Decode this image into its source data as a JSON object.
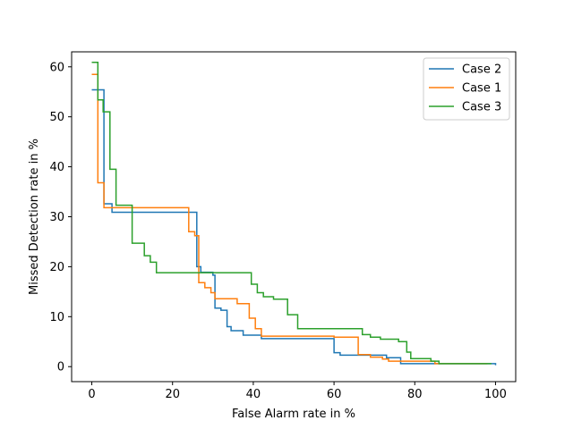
{
  "chart_data": {
    "type": "line",
    "xlabel": "False Alarm rate in %",
    "ylabel": "Missed Detection rate in %",
    "xlim": [
      -5,
      105
    ],
    "ylim": [
      -3,
      63
    ],
    "xticks": [
      0,
      20,
      40,
      60,
      80,
      100
    ],
    "yticks": [
      0,
      10,
      20,
      30,
      40,
      50,
      60
    ],
    "grid": false,
    "legend_position": "top-right",
    "series": [
      {
        "name": "Case 2",
        "color": "#1f77b4",
        "points": [
          [
            0,
            55.4
          ],
          [
            3,
            55.4
          ],
          [
            3,
            32.6
          ],
          [
            5,
            32.6
          ],
          [
            5,
            30.9
          ],
          [
            26,
            30.9
          ],
          [
            26,
            20.0
          ],
          [
            27,
            20.0
          ],
          [
            27,
            18.9
          ],
          [
            30,
            18.9
          ],
          [
            30,
            18.3
          ],
          [
            30.5,
            18.3
          ],
          [
            30.5,
            11.7
          ],
          [
            32,
            11.7
          ],
          [
            32,
            11.3
          ],
          [
            33.5,
            11.3
          ],
          [
            33.5,
            8.0
          ],
          [
            34.5,
            8.0
          ],
          [
            34.5,
            7.2
          ],
          [
            37.5,
            7.2
          ],
          [
            37.5,
            6.3
          ],
          [
            42,
            6.3
          ],
          [
            42,
            5.6
          ],
          [
            60,
            5.6
          ],
          [
            60,
            2.8
          ],
          [
            61.5,
            2.8
          ],
          [
            61.5,
            2.3
          ],
          [
            73,
            2.3
          ],
          [
            73,
            1.8
          ],
          [
            76.5,
            1.8
          ],
          [
            76.5,
            0.6
          ],
          [
            84,
            0.6
          ],
          [
            84,
            0.6
          ],
          [
            100,
            0.6
          ],
          [
            100,
            0.3
          ]
        ]
      },
      {
        "name": "Case 1",
        "color": "#ff7f0e",
        "points": [
          [
            0,
            58.5
          ],
          [
            1.5,
            58.5
          ],
          [
            1.5,
            36.8
          ],
          [
            3,
            36.8
          ],
          [
            3,
            31.8
          ],
          [
            5,
            31.8
          ],
          [
            5,
            31.8
          ],
          [
            24,
            31.8
          ],
          [
            24,
            27.0
          ],
          [
            25.5,
            27.0
          ],
          [
            25.5,
            26.2
          ],
          [
            26.5,
            26.2
          ],
          [
            26.5,
            16.8
          ],
          [
            28,
            16.8
          ],
          [
            28,
            15.8
          ],
          [
            29.5,
            15.8
          ],
          [
            29.5,
            14.8
          ],
          [
            30.5,
            14.8
          ],
          [
            30.5,
            13.6
          ],
          [
            36,
            13.6
          ],
          [
            36,
            12.6
          ],
          [
            39,
            12.6
          ],
          [
            39,
            9.7
          ],
          [
            40.5,
            9.7
          ],
          [
            40.5,
            7.6
          ],
          [
            42,
            7.6
          ],
          [
            42,
            6.1
          ],
          [
            60,
            6.1
          ],
          [
            60,
            5.9
          ],
          [
            66,
            5.9
          ],
          [
            66,
            2.4
          ],
          [
            69,
            2.4
          ],
          [
            69,
            1.9
          ],
          [
            72,
            1.9
          ],
          [
            72,
            1.5
          ],
          [
            73.5,
            1.5
          ],
          [
            73.5,
            1.1
          ],
          [
            81,
            1.1
          ],
          [
            81,
            1.1
          ],
          [
            85,
            1.1
          ],
          [
            85,
            0.6
          ],
          [
            98,
            0.6
          ]
        ]
      },
      {
        "name": "Case 3",
        "color": "#2ca02c",
        "points": [
          [
            0,
            60.9
          ],
          [
            1.5,
            60.9
          ],
          [
            1.5,
            53.4
          ],
          [
            2.8,
            53.4
          ],
          [
            2.8,
            51.0
          ],
          [
            4.5,
            51.0
          ],
          [
            4.5,
            39.5
          ],
          [
            6,
            39.5
          ],
          [
            6,
            32.3
          ],
          [
            10,
            32.3
          ],
          [
            10,
            24.7
          ],
          [
            13,
            24.7
          ],
          [
            13,
            22.2
          ],
          [
            14.5,
            22.2
          ],
          [
            14.5,
            20.9
          ],
          [
            16,
            20.9
          ],
          [
            16,
            18.8
          ],
          [
            39.5,
            18.8
          ],
          [
            39.5,
            16.5
          ],
          [
            41,
            16.5
          ],
          [
            41,
            14.8
          ],
          [
            42.5,
            14.8
          ],
          [
            42.5,
            14.0
          ],
          [
            45,
            14.0
          ],
          [
            45,
            13.5
          ],
          [
            48.5,
            13.5
          ],
          [
            48.5,
            10.4
          ],
          [
            51,
            10.4
          ],
          [
            51,
            7.6
          ],
          [
            67,
            7.6
          ],
          [
            67,
            6.4
          ],
          [
            69,
            6.4
          ],
          [
            69,
            5.9
          ],
          [
            71.5,
            5.9
          ],
          [
            71.5,
            5.5
          ],
          [
            76,
            5.5
          ],
          [
            76,
            5.0
          ],
          [
            78,
            5.0
          ],
          [
            78,
            2.9
          ],
          [
            79,
            2.9
          ],
          [
            79,
            1.6
          ],
          [
            84,
            1.6
          ],
          [
            84,
            1.1
          ],
          [
            86,
            1.1
          ],
          [
            86,
            0.6
          ],
          [
            99,
            0.6
          ]
        ]
      }
    ]
  }
}
